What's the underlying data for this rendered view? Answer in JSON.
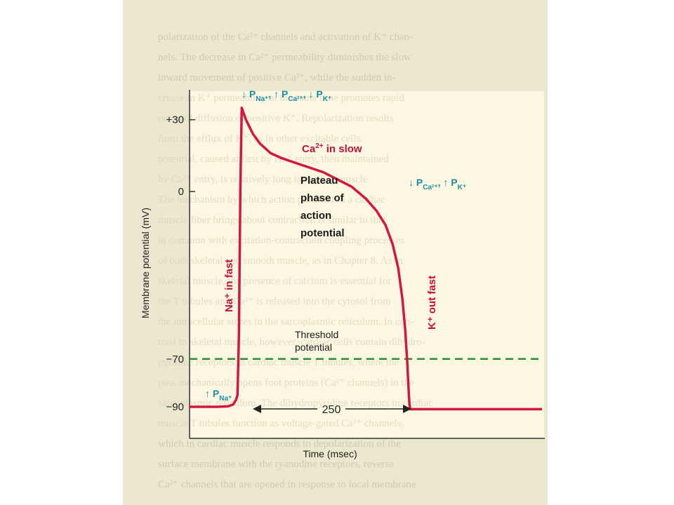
{
  "colors": {
    "page_background": "#ffffff",
    "scan_background": "#ece8cf",
    "plot_background": "#fbf7e0",
    "trace": "#d3173f",
    "threshold_line": "#2e8b3a",
    "annotation_teal": "#1b8ca8",
    "annotation_red": "#c4123c"
  },
  "chart_data": {
    "type": "line",
    "title": "",
    "xlabel": "Time (msec)",
    "ylabel": "Membrane potential (mV)",
    "ylim": [
      -100,
      40
    ],
    "yticks": [
      {
        "value": 30,
        "label": "+30"
      },
      {
        "value": 0,
        "label": "0"
      },
      {
        "value": -70,
        "label": "−70"
      },
      {
        "value": -90,
        "label": "−90"
      }
    ],
    "xlim": [
      0,
      500
    ],
    "xticks_shown": false,
    "grid": false,
    "legend": "none",
    "series": [
      {
        "x": [
          0,
          40,
          55,
          62,
          66,
          68,
          70,
          72,
          74,
          80,
          90,
          100,
          115,
          130,
          150,
          170,
          190,
          210,
          230,
          250,
          265,
          278,
          288,
          296,
          302,
          306,
          309,
          311,
          312,
          313,
          320,
          400,
          500
        ],
        "y": [
          -90,
          -90,
          -89.8,
          -89,
          -87,
          -85,
          -60,
          0,
          35,
          30,
          24,
          20,
          16,
          14,
          12,
          10,
          8,
          5,
          2,
          -3,
          -8,
          -14,
          -22,
          -32,
          -45,
          -58,
          -72,
          -84,
          -89,
          -91,
          -91,
          -91,
          -91
        ]
      }
    ],
    "threshold": {
      "value": -70,
      "label": "Threshold potential"
    },
    "annotations": {
      "na_in": "Na⁺ in fast",
      "ca_in_slow": "Ca²⁺ in slow",
      "plateau": [
        "Plateau",
        "phase of",
        "action",
        "potential"
      ],
      "k_out": "K⁺ out fast",
      "top_permeability": "↓Pₙₐ⁺, ↑P꜀ₐ²⁺, ↓Pₖ⁺",
      "right_permeability": "↓P꜀ₐ²⁺, ↑Pₖ⁺",
      "bottom_permeability": "↑Pₙₐ⁺",
      "duration": "250"
    },
    "annotation_parts": {
      "top": [
        {
          "arrow": "↓",
          "base": "P",
          "sub": "Na⁺",
          "sep": ", "
        },
        {
          "arrow": "↑",
          "base": "P",
          "sub": "Ca²⁺",
          "sep": ", "
        },
        {
          "arrow": "↓",
          "base": "P",
          "sub": "K⁺",
          "sep": ""
        }
      ],
      "right": [
        {
          "arrow": "↓",
          "base": "P",
          "sub": "Ca²⁺",
          "sep": ", "
        },
        {
          "arrow": "↑",
          "base": "P",
          "sub": "K⁺",
          "sep": ""
        }
      ],
      "bottom": [
        {
          "arrow": "↑",
          "base": "P",
          "sub": "Na⁺",
          "sep": ""
        }
      ]
    }
  },
  "background_text_lines": [
    "polarization of the Ca²⁺ channels and activation of K⁺ chan-",
    "nels. The decrease in Ca²⁺ permeability diminishes the slow",
    "inward movement of positive Ca²⁺, while the sudden in-",
    "crease in K⁺ permeability at the same time promotes rapid",
    "outward diffusion of positive K⁺. Repolarization results",
    "from the efflux of K⁺, as in other excitable cells.",
    "potential, caused at first by Na⁺ entry, then maintained",
    "by Ca²⁺ entry, is relatively long in cardiac muscle",
    "The mechanism by which action potential in a cardiac",
    "muscle fiber brings about contraction is similar to that",
    "in common with excitation-contraction coupling processes",
    "of both skeletal and smooth muscle, as in Chapter 8. As in",
    "skeletal muscle, the presence of calcium is essential for",
    "the T tubules and Ca²⁺ is released into the cytosol from",
    "the intracellular stores in the sarcoplasmic reticulum. In con-",
    "trast to skeletal muscle, however, cardiac cells contain dihydro-",
    "pyridine receptors in cardiac muscle T tubules, where the",
    "pass mechanically opens foot proteins (Ca²⁺ channels) in the",
    "sarcoplasmic reticulum. The dihydropyridine receptors in cardiac",
    "muscle T tubules function as voltage-gated Ca²⁺ channels,",
    "which in cardiac muscle responds to depolarization of the",
    "surface membrane with the ryanodine receptors, reverse",
    "Ca²⁺ channels that are opened in response to local membrane"
  ]
}
